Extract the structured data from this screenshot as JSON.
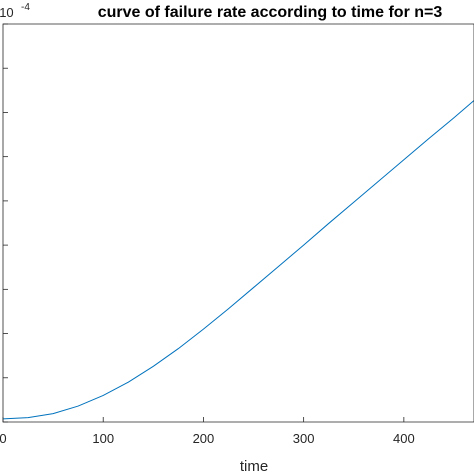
{
  "chart_data": {
    "type": "line",
    "title": "curve of failure rate according to time for n=3",
    "xlabel": "time",
    "ylabel": "",
    "xlim": [
      0,
      470
    ],
    "ylim": [
      0,
      9
    ],
    "y_multiplier": {
      "base": "× 10",
      "exponent": "-4"
    },
    "xticks": [
      0,
      100,
      200,
      300,
      400
    ],
    "xtick_labels": [
      "0",
      "100",
      "200",
      "300",
      "400"
    ],
    "yticks": [
      0,
      1,
      2,
      3,
      4,
      5,
      6,
      7,
      8,
      9
    ],
    "grid": false,
    "box": true,
    "line_color": "#0072BD",
    "axis_color": "#262626",
    "series": [
      {
        "x": [
          0,
          25,
          50,
          75,
          100,
          125,
          150,
          175,
          200,
          225,
          250,
          275,
          300,
          325,
          350,
          375,
          400,
          425,
          450,
          470
        ],
        "y": [
          0.07,
          0.1,
          0.19,
          0.36,
          0.6,
          0.9,
          1.26,
          1.66,
          2.1,
          2.56,
          3.04,
          3.52,
          4.0,
          4.49,
          4.97,
          5.45,
          5.93,
          6.41,
          6.88,
          7.27
        ]
      }
    ]
  }
}
